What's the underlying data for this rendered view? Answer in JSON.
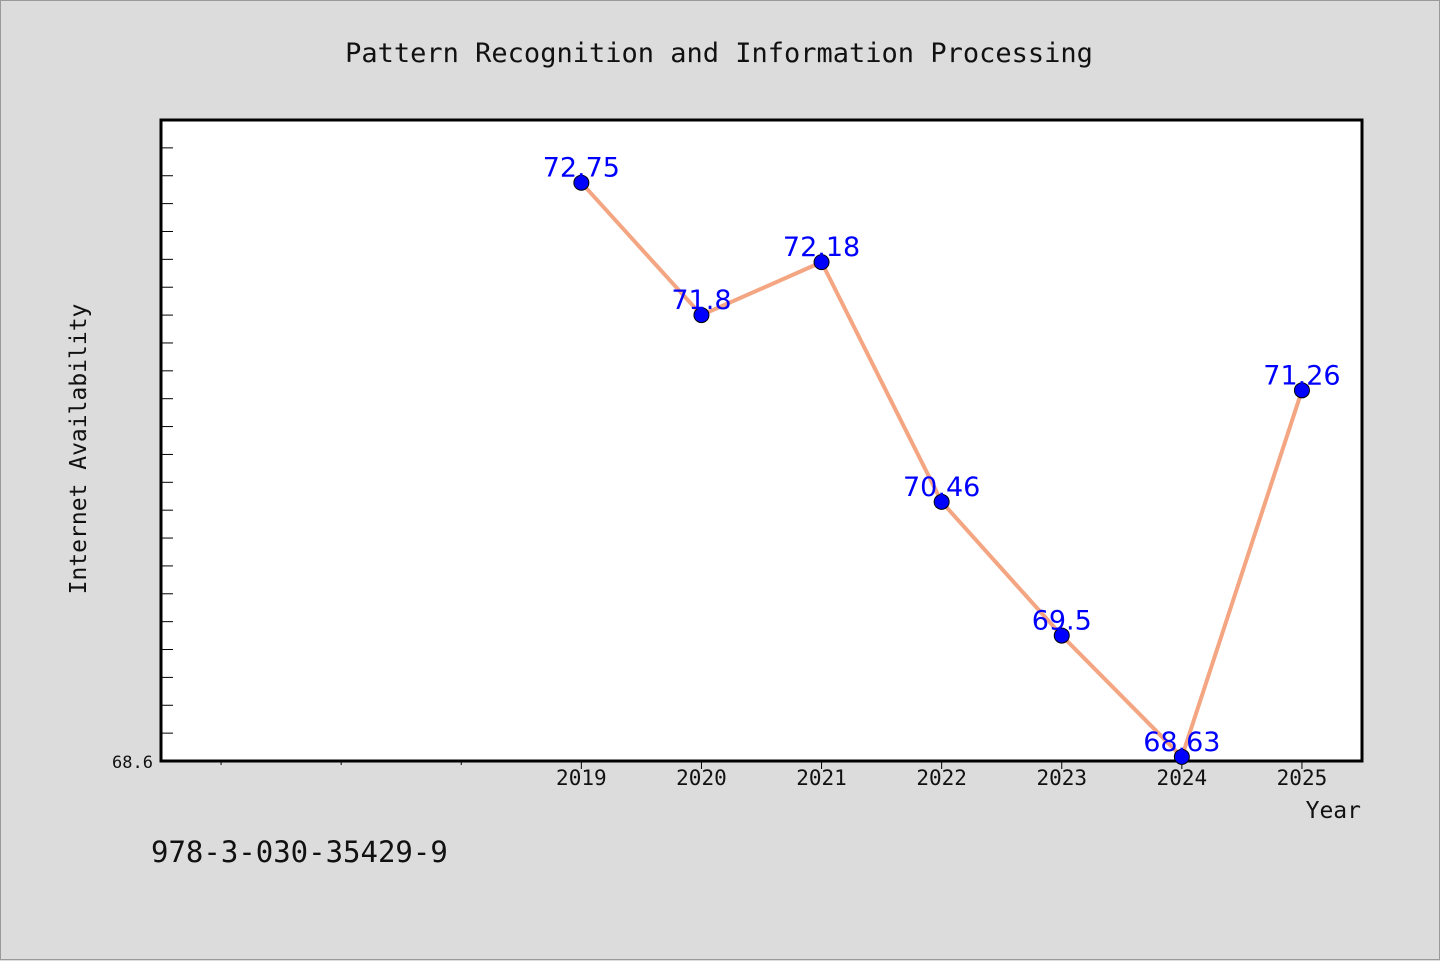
{
  "colors": {
    "background": "#dcdcdc",
    "plot_background": "#ffffff",
    "line": "#f4a582",
    "marker": "#0000ff",
    "data_label": "#0000ff"
  },
  "footer": {
    "code": "978-3-030-35429-9"
  },
  "chart_data": {
    "type": "line",
    "title": "Pattern Recognition and Information Processing",
    "xlabel": "Year",
    "ylabel": "Internet Availability",
    "ytick_label": "68.6",
    "categories": [
      "2019",
      "2020",
      "2021",
      "2022",
      "2023",
      "2024",
      "2025"
    ],
    "series": [
      {
        "values": [
          72.75,
          71.8,
          72.18,
          70.46,
          69.5,
          68.63,
          71.26
        ]
      }
    ],
    "data_labels": [
      "72.75",
      "71.8",
      "72.18",
      "70.46",
      "69.5",
      "68.63",
      "71.26"
    ],
    "xlim": [
      2015.5,
      2025.5
    ],
    "ylim": [
      68.6,
      73.2
    ],
    "grid": false,
    "legend": "none"
  }
}
